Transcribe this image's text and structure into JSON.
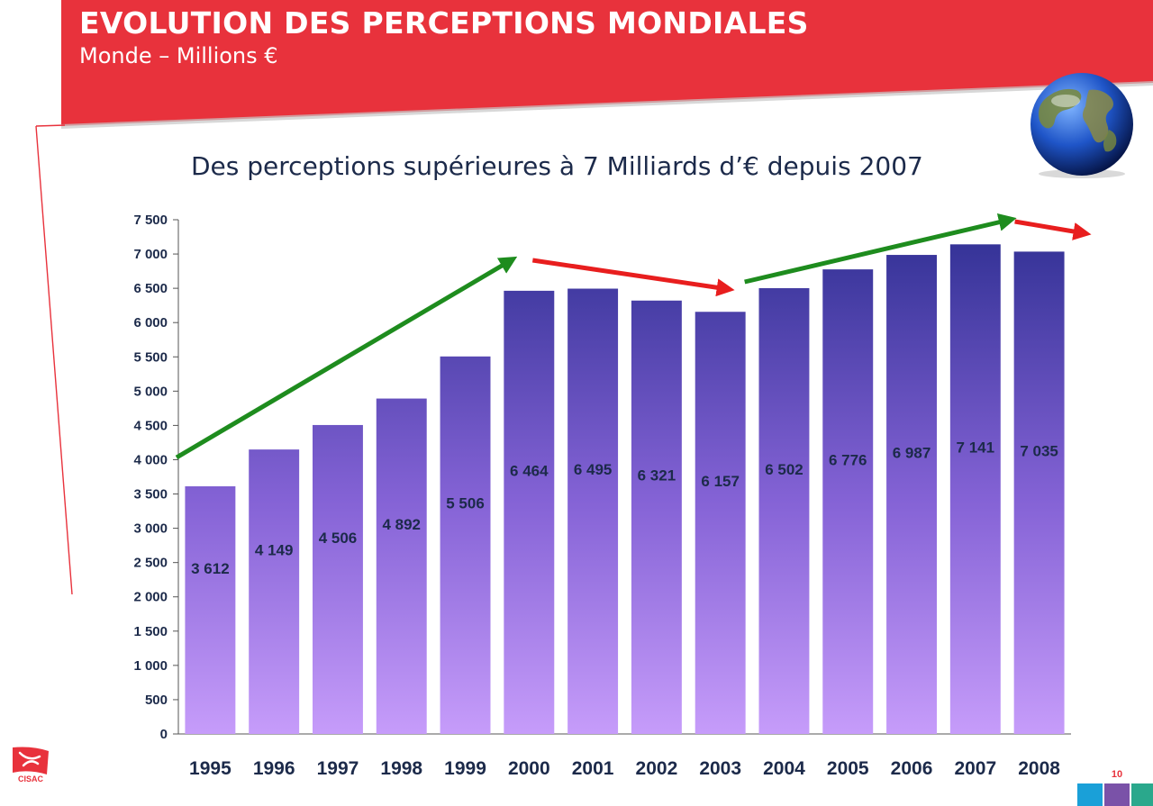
{
  "header": {
    "title": "EVOLUTION DES PERCEPTIONS MONDIALES",
    "subtitle": "Monde – Millions €"
  },
  "footer": {
    "logo_text": "CISAC",
    "page_number": "10",
    "blocks": [
      "#1aa0d8",
      "#7a52a8",
      "#2aa88c"
    ]
  },
  "colors": {
    "header_red": "#e8323c",
    "bar_top": "#2e2f92",
    "bar_bottom": "#c69cfa",
    "growth_arrow": "#1e8c1e",
    "decline_arrow": "#e81e1e",
    "label_text": "#1c2a4a"
  },
  "icons": [
    "globe-icon",
    "cisac-logo-icon"
  ],
  "chart_data": {
    "type": "bar",
    "title": "Des perceptions supérieures à 7 Milliards d’€ depuis 2007",
    "categories": [
      "1995",
      "1996",
      "1997",
      "1998",
      "1999",
      "2000",
      "2001",
      "2002",
      "2003",
      "2004",
      "2005",
      "2006",
      "2007",
      "2008"
    ],
    "values": [
      3612,
      4149,
      4506,
      4892,
      5506,
      6464,
      6495,
      6321,
      6157,
      6502,
      6776,
      6987,
      7141,
      7035
    ],
    "value_labels": [
      "3 612",
      "4 149",
      "4 506",
      "4 892",
      "5 506",
      "6 464",
      "6 495",
      "6 321",
      "6 157",
      "6 502",
      "6 776",
      "6 987",
      "7 141",
      "7 035"
    ],
    "y_ticks": [
      0,
      500,
      1000,
      1500,
      2000,
      2500,
      3000,
      3500,
      4000,
      4500,
      5000,
      5500,
      6000,
      6500,
      7000,
      7500
    ],
    "y_tick_labels": [
      "0",
      "500",
      "1 000",
      "1 500",
      "2 000",
      "2 500",
      "3 000",
      "3 500",
      "4 000",
      "4 500",
      "5 000",
      "5 500",
      "6 000",
      "6 500",
      "7 000",
      "7 500"
    ],
    "ylim": [
      0,
      7500
    ],
    "xlabel": "",
    "ylabel": "",
    "grid": false,
    "legend": "none",
    "trend_arrows": [
      {
        "direction": "up",
        "from_year": "1995",
        "to_year": "2000"
      },
      {
        "direction": "down",
        "from_year": "2000",
        "to_year": "2003"
      },
      {
        "direction": "up",
        "from_year": "2003",
        "to_year": "2007"
      },
      {
        "direction": "down",
        "from_year": "2007",
        "to_year": "2008"
      }
    ]
  }
}
